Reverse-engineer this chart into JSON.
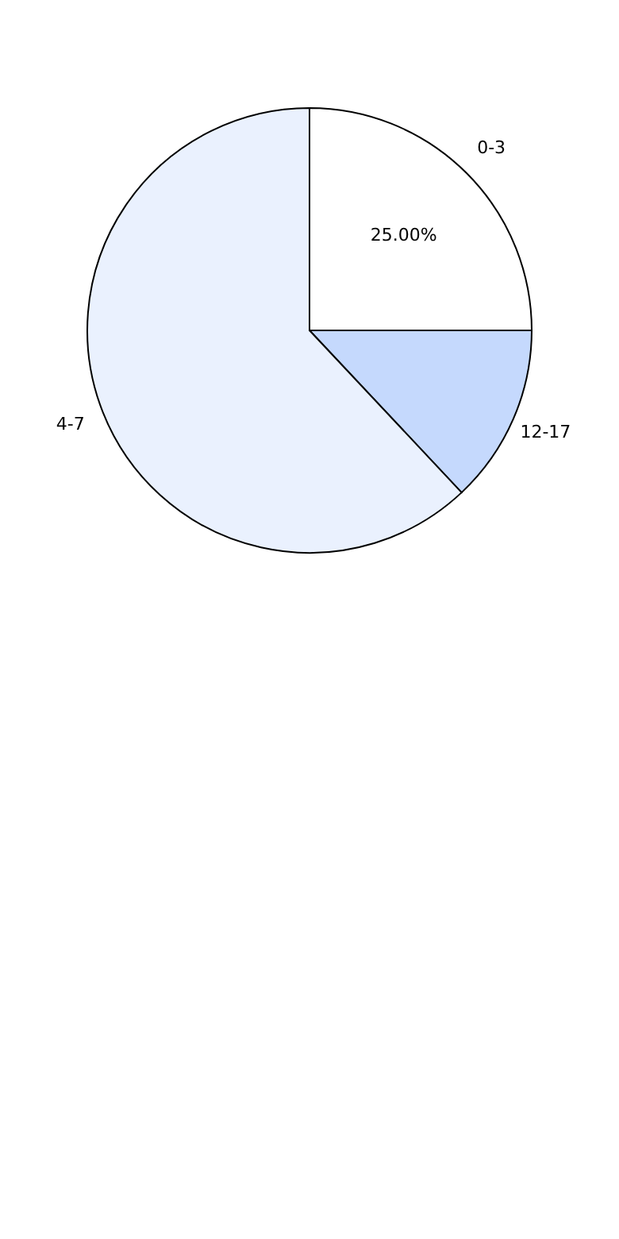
{
  "chart_data": {
    "type": "pie",
    "categories": [
      "12-17",
      "4-7",
      "0-3"
    ],
    "values": [
      13,
      62,
      25
    ],
    "colors": [
      "#c5d9fd",
      "#eaf1fe",
      "#ffffff"
    ],
    "value_labels": [
      null,
      null,
      "25.00%"
    ],
    "legend": false
  }
}
